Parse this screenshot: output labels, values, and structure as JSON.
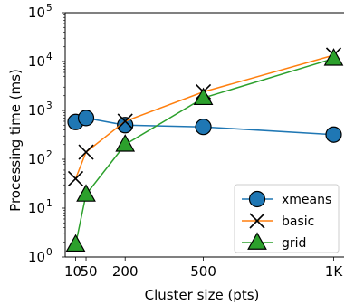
{
  "chart_data": {
    "type": "line",
    "xlabel": "Cluster size (pts)",
    "ylabel": "Processing time (ms)",
    "yscale": "log",
    "xlim": [
      -30,
      1040
    ],
    "ylim": [
      1,
      100000
    ],
    "xticks": [
      {
        "value": 10,
        "label": "10"
      },
      {
        "value": 50,
        "label": "50"
      },
      {
        "value": 200,
        "label": "200"
      },
      {
        "value": 500,
        "label": "500"
      },
      {
        "value": 1000,
        "label": "1K"
      }
    ],
    "yticks": [
      {
        "value": 1,
        "base": "10",
        "exp": "0"
      },
      {
        "value": 10,
        "base": "10",
        "exp": "1"
      },
      {
        "value": 100,
        "base": "10",
        "exp": "2"
      },
      {
        "value": 1000,
        "base": "10",
        "exp": "3"
      },
      {
        "value": 10000,
        "base": "10",
        "exp": "4"
      },
      {
        "value": 100000,
        "base": "10",
        "exp": "5"
      }
    ],
    "legend_position": "bottom-right",
    "series": [
      {
        "name": "xmeans",
        "marker": "circle",
        "color": "#1f77b4",
        "x": [
          10,
          50,
          200,
          500,
          1000
        ],
        "y": [
          580,
          700,
          500,
          460,
          320
        ]
      },
      {
        "name": "basic",
        "marker": "x",
        "color": "#ff7f0e",
        "x": [
          10,
          50,
          200,
          500,
          1000
        ],
        "y": [
          40,
          140,
          600,
          2400,
          13500
        ]
      },
      {
        "name": "grid",
        "marker": "triangle",
        "color": "#2ca02c",
        "x": [
          10,
          50,
          200,
          500,
          1000
        ],
        "y": [
          1.8,
          19,
          200,
          1800,
          11500
        ]
      }
    ]
  }
}
